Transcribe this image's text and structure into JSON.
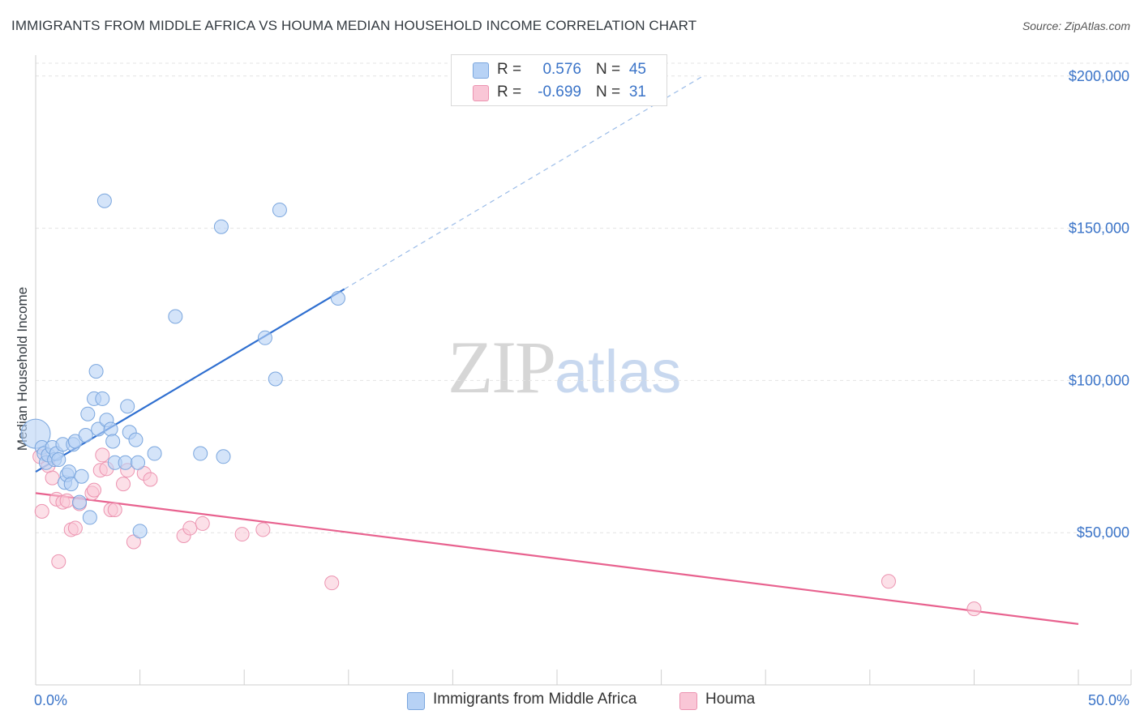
{
  "header": {
    "title": "IMMIGRANTS FROM MIDDLE AFRICA VS HOUMA MEDIAN HOUSEHOLD INCOME CORRELATION CHART",
    "source": "Source: ZipAtlas.com"
  },
  "watermark": {
    "zip": "ZIP",
    "atlas": "atlas"
  },
  "legend": {
    "rows": [
      {
        "r_label": "R =",
        "r_value": "0.576",
        "n_label": "N =",
        "n_value": "45",
        "color": "#b7d2f5"
      },
      {
        "r_label": "R =",
        "r_value": "-0.699",
        "n_label": "N =",
        "n_value": "31",
        "color": "#f9c6d6"
      }
    ]
  },
  "bottom_legend": {
    "series1": "Immigrants from Middle Africa",
    "series2": "Houma"
  },
  "colors": {
    "blue_fill": "#b7d2f5",
    "blue_stroke": "#7aa6de",
    "blue_line": "#2f6fd0",
    "pink_fill": "#f9c6d6",
    "pink_stroke": "#ec93b0",
    "pink_line": "#e8628f",
    "grid": "#e3e3e3",
    "tick_text": "#3b74c8"
  },
  "chart_data": {
    "type": "scatter",
    "title": "IMMIGRANTS FROM MIDDLE AFRICA VS HOUMA MEDIAN HOUSEHOLD INCOME CORRELATION CHART",
    "xlabel": "",
    "ylabel": "Median Household Income",
    "xlim": [
      0,
      50
    ],
    "ylim": [
      0,
      205000
    ],
    "x_tick_labels": [
      "0.0%",
      "50.0%"
    ],
    "y_ticks": [
      50000,
      100000,
      150000,
      200000
    ],
    "y_tick_labels": [
      "$50,000",
      "$100,000",
      "$150,000",
      "$200,000"
    ],
    "grid": true,
    "legend_position": "top-center",
    "series": [
      {
        "name": "Immigrants from Middle Africa",
        "points": [
          [
            0.0,
            82500
          ],
          [
            0.3,
            78000
          ],
          [
            0.4,
            76000
          ],
          [
            0.5,
            73000
          ],
          [
            0.6,
            75500
          ],
          [
            0.8,
            78000
          ],
          [
            0.9,
            74000
          ],
          [
            1.0,
            76000
          ],
          [
            1.1,
            74000
          ],
          [
            1.3,
            79000
          ],
          [
            1.4,
            66500
          ],
          [
            1.5,
            69000
          ],
          [
            1.6,
            70000
          ],
          [
            1.7,
            66000
          ],
          [
            1.8,
            79000
          ],
          [
            1.9,
            80000
          ],
          [
            2.1,
            60000
          ],
          [
            2.2,
            68500
          ],
          [
            2.4,
            82000
          ],
          [
            2.5,
            89000
          ],
          [
            2.6,
            55000
          ],
          [
            2.8,
            94000
          ],
          [
            2.9,
            103000
          ],
          [
            3.0,
            84000
          ],
          [
            3.2,
            94000
          ],
          [
            3.3,
            159000
          ],
          [
            3.4,
            87000
          ],
          [
            3.6,
            84000
          ],
          [
            3.7,
            80000
          ],
          [
            3.8,
            73000
          ],
          [
            4.3,
            73000
          ],
          [
            4.4,
            91500
          ],
          [
            4.5,
            83000
          ],
          [
            4.8,
            80500
          ],
          [
            4.9,
            73000
          ],
          [
            5.0,
            50500
          ],
          [
            5.7,
            76000
          ],
          [
            6.7,
            121000
          ],
          [
            7.9,
            76000
          ],
          [
            8.9,
            150500
          ],
          [
            9.0,
            75000
          ],
          [
            11.0,
            114000
          ],
          [
            11.5,
            100500
          ],
          [
            11.7,
            156000
          ],
          [
            14.5,
            127000
          ]
        ],
        "trend": {
          "x": [
            0.0,
            14.8
          ],
          "y": [
            70000,
            130000
          ],
          "dashed_to": [
            32.0,
            200000
          ]
        }
      },
      {
        "name": "Houma",
        "points": [
          [
            0.3,
            57000
          ],
          [
            0.6,
            72000
          ],
          [
            0.8,
            68000
          ],
          [
            1.0,
            61000
          ],
          [
            1.1,
            40500
          ],
          [
            1.3,
            60000
          ],
          [
            1.5,
            60500
          ],
          [
            1.7,
            51000
          ],
          [
            1.9,
            51500
          ],
          [
            2.1,
            59500
          ],
          [
            2.7,
            63000
          ],
          [
            2.8,
            64000
          ],
          [
            3.1,
            70500
          ],
          [
            3.2,
            75500
          ],
          [
            3.4,
            71000
          ],
          [
            3.6,
            57500
          ],
          [
            3.8,
            57500
          ],
          [
            4.2,
            66000
          ],
          [
            4.4,
            70500
          ],
          [
            4.7,
            47000
          ],
          [
            5.2,
            69500
          ],
          [
            5.5,
            67500
          ],
          [
            7.1,
            49000
          ],
          [
            7.4,
            51500
          ],
          [
            8.0,
            53000
          ],
          [
            9.9,
            49500
          ],
          [
            10.9,
            51000
          ],
          [
            14.2,
            33500
          ],
          [
            40.9,
            34000
          ],
          [
            45.0,
            25000
          ],
          [
            0.2,
            75000
          ]
        ],
        "trend": {
          "x": [
            0.0,
            50.0
          ],
          "y": [
            63000,
            20000
          ]
        }
      }
    ]
  }
}
